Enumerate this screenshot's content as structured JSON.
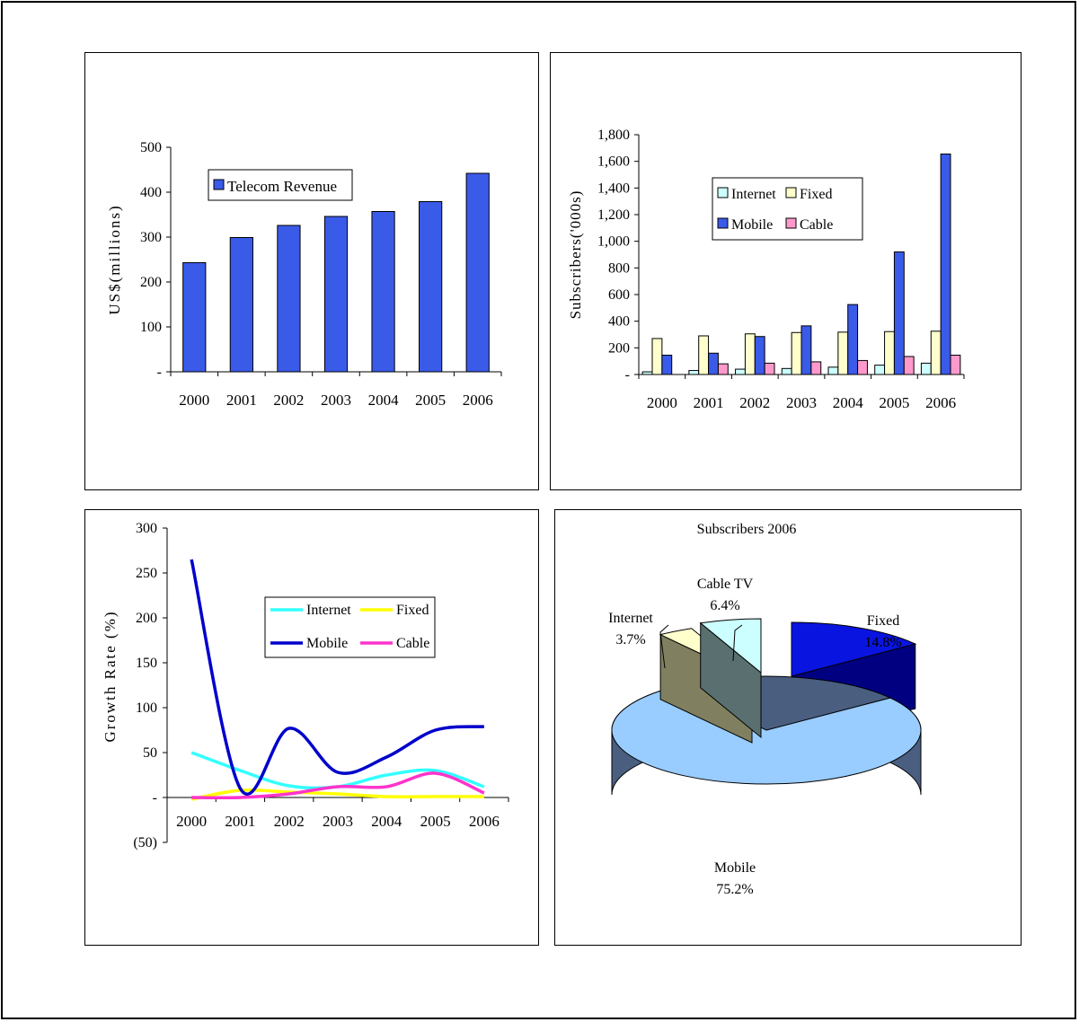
{
  "chart_data": [
    {
      "type": "bar",
      "title": "",
      "categories": [
        "2000",
        "2001",
        "2002",
        "2003",
        "2004",
        "2005",
        "2006"
      ],
      "series": [
        {
          "name": "Telecom Revenue",
          "values": [
            243,
            299,
            326,
            346,
            357,
            379,
            442
          ],
          "color": "#3A5AE8"
        }
      ],
      "ylabel": "US$(millions)",
      "xlabel": "",
      "ylim": [
        0,
        500
      ],
      "yticks": [
        {
          "v": 0,
          "label": "-"
        },
        {
          "v": 100,
          "label": "100"
        },
        {
          "v": 200,
          "label": "200"
        },
        {
          "v": 300,
          "label": "300"
        },
        {
          "v": 400,
          "label": "400"
        },
        {
          "v": 500,
          "label": "500"
        }
      ],
      "legend_position": "top-left",
      "grid": false
    },
    {
      "type": "bar",
      "title": "",
      "categories": [
        "2000",
        "2001",
        "2002",
        "2003",
        "2004",
        "2005",
        "2006"
      ],
      "series": [
        {
          "name": "Internet",
          "values": [
            20,
            30,
            40,
            45,
            55,
            70,
            85
          ],
          "color": "#CCFFFF"
        },
        {
          "name": "Fixed",
          "values": [
            270,
            290,
            305,
            315,
            318,
            322,
            325
          ],
          "color": "#FFFFCC"
        },
        {
          "name": "Mobile",
          "values": [
            145,
            160,
            285,
            365,
            525,
            920,
            1655
          ],
          "color": "#3A5AE8"
        },
        {
          "name": "Cable",
          "values": [
            0,
            80,
            85,
            95,
            105,
            135,
            145
          ],
          "color": "#FF99CC"
        }
      ],
      "ylabel": "Subscribers('000s)",
      "xlabel": "",
      "ylim": [
        0,
        1800
      ],
      "yticks": [
        {
          "v": 0,
          "label": "-"
        },
        {
          "v": 200,
          "label": "200"
        },
        {
          "v": 400,
          "label": "400"
        },
        {
          "v": 600,
          "label": "600"
        },
        {
          "v": 800,
          "label": "800"
        },
        {
          "v": 1000,
          "label": "1,000"
        },
        {
          "v": 1200,
          "label": "1,200"
        },
        {
          "v": 1400,
          "label": "1,400"
        },
        {
          "v": 1600,
          "label": "1,600"
        },
        {
          "v": 1800,
          "label": "1,800"
        }
      ],
      "legend_position": "top-center",
      "grid": false
    },
    {
      "type": "line",
      "title": "",
      "categories": [
        "2000",
        "2001",
        "2002",
        "2003",
        "2004",
        "2005",
        "2006"
      ],
      "series": [
        {
          "name": "Internet",
          "values": [
            50,
            30,
            13,
            12,
            25,
            30,
            12
          ],
          "color": "#33FFFF"
        },
        {
          "name": "Fixed",
          "values": [
            -2,
            8,
            6,
            4,
            1,
            1,
            1
          ],
          "color": "#FFFF00"
        },
        {
          "name": "Mobile",
          "values": [
            265,
            10,
            77,
            28,
            45,
            75,
            79
          ],
          "color": "#0000CC"
        },
        {
          "name": "Cable",
          "values": [
            0,
            0,
            4,
            12,
            12,
            27,
            5
          ],
          "color": "#FF33CC"
        }
      ],
      "ylabel": "Growth Rate (%)",
      "xlabel": "",
      "ylim": [
        -50,
        300
      ],
      "yticks": [
        {
          "v": -50,
          "label": "(50)"
        },
        {
          "v": 0,
          "label": "-"
        },
        {
          "v": 50,
          "label": "50"
        },
        {
          "v": 100,
          "label": "100"
        },
        {
          "v": 150,
          "label": "150"
        },
        {
          "v": 200,
          "label": "200"
        },
        {
          "v": 250,
          "label": "250"
        },
        {
          "v": 300,
          "label": "300"
        }
      ],
      "legend_position": "top-right",
      "grid": false
    },
    {
      "type": "pie",
      "title": "Subscribers 2006",
      "slices": [
        {
          "name": "Fixed",
          "value": 14.8,
          "label": "14.8%",
          "color": "#0A14E0",
          "side": "#000080"
        },
        {
          "name": "Mobile",
          "value": 75.2,
          "label": "75.2%",
          "color": "#99CCFF",
          "side": "#4A5E80"
        },
        {
          "name": "Internet",
          "value": 3.7,
          "label": "3.7%",
          "color": "#FFFFCC",
          "side": "#808060"
        },
        {
          "name": "Cable TV",
          "value": 6.4,
          "label": "6.4%",
          "color": "#CCFFFF",
          "side": "#5A7070"
        }
      ],
      "style": "3d-exploded"
    }
  ]
}
